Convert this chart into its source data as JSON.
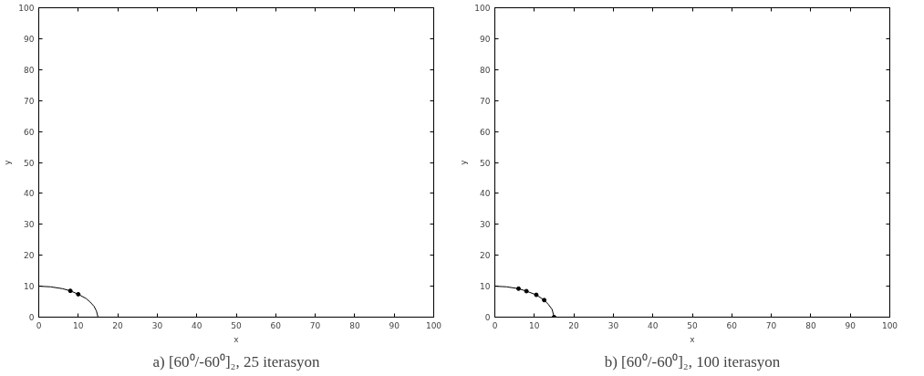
{
  "chart_data": [
    {
      "type": "line",
      "title": "a) [60⁰/-60⁰]₂, 25 iterasyon",
      "xlabel": "x",
      "ylabel": "y",
      "xlim": [
        0,
        100
      ],
      "ylim": [
        0,
        100
      ],
      "xticks": [
        0,
        10,
        20,
        30,
        40,
        50,
        60,
        70,
        80,
        90,
        100
      ],
      "yticks": [
        0,
        10,
        20,
        30,
        40,
        50,
        60,
        70,
        80,
        90,
        100
      ],
      "grid": false,
      "series": [
        {
          "color": "#000000",
          "x": [
            0,
            3,
            6,
            8,
            10,
            12,
            13,
            14,
            14.6,
            15
          ],
          "values": [
            10,
            9.8,
            9.2,
            8.5,
            7.4,
            6,
            4.9,
            3.5,
            2,
            0
          ]
        },
        {
          "type": "scatter",
          "color": "#000000",
          "marker": "circle",
          "x": [
            8,
            10
          ],
          "values": [
            8.5,
            7.4
          ]
        }
      ]
    },
    {
      "type": "line",
      "title": "b) [60⁰/-60⁰]₂, 100 iterasyon",
      "xlabel": "x",
      "ylabel": "y",
      "xlim": [
        0,
        100
      ],
      "ylim": [
        0,
        100
      ],
      "xticks": [
        0,
        10,
        20,
        30,
        40,
        50,
        60,
        70,
        80,
        90,
        100
      ],
      "yticks": [
        0,
        10,
        20,
        30,
        40,
        50,
        60,
        70,
        80,
        90,
        100
      ],
      "grid": false,
      "series": [
        {
          "color": "#000000",
          "x": [
            0,
            3,
            6,
            8,
            10.5,
            12.5,
            13.5,
            14.5,
            15
          ],
          "values": [
            10,
            9.8,
            9.2,
            8.4,
            7.2,
            5.5,
            4.2,
            2.5,
            0
          ]
        },
        {
          "type": "scatter",
          "color": "#000000",
          "marker": "circle",
          "x": [
            6,
            8,
            10.5,
            12.5,
            15
          ],
          "values": [
            9.2,
            8.4,
            7.2,
            5.5,
            0
          ]
        }
      ]
    }
  ]
}
